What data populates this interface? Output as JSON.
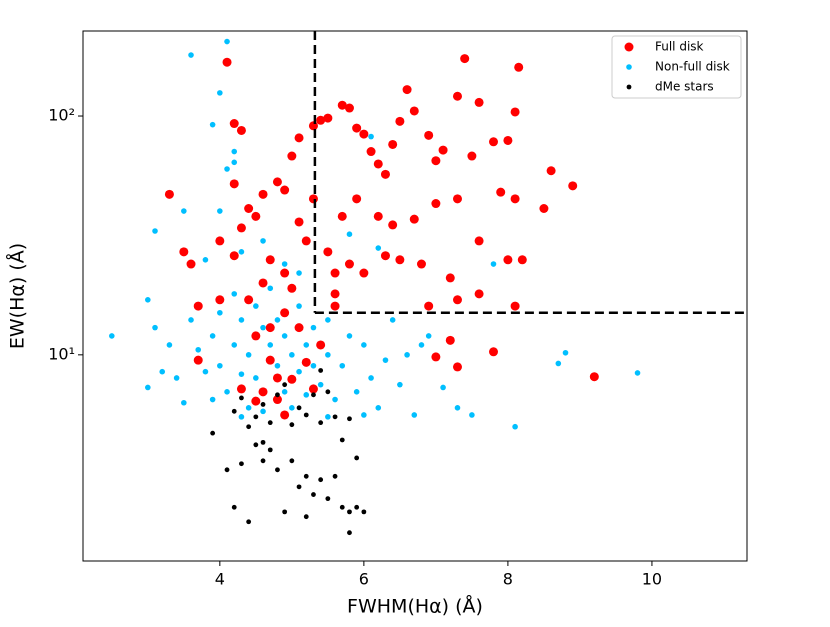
{
  "chart_data": {
    "type": "scatter",
    "xlabel": "FWHM(Hα) (Å)",
    "ylabel": "EW(Hα) (Å)",
    "xlim": [
      2.1,
      11.32
    ],
    "ylim": [
      1.37,
      227
    ],
    "ylog": true,
    "xticks": [
      4,
      6,
      8,
      10
    ],
    "yticks": [
      {
        "value": 10,
        "label": "10¹"
      },
      {
        "value": 100,
        "label": "10²"
      }
    ],
    "cuts": {
      "x": 5.32,
      "y": 15
    },
    "legend": "upper right",
    "series": [
      {
        "name": "Full disk",
        "color": "#ff0000",
        "marker_size": 4.5,
        "x": [
          4.1,
          3.3,
          3.5,
          3.6,
          4.0,
          4.2,
          4.3,
          4.2,
          4.4,
          4.5,
          4.6,
          4.8,
          4.9,
          5.0,
          5.1,
          5.3,
          5.4,
          5.5,
          5.7,
          5.8,
          5.9,
          6.0,
          6.1,
          6.2,
          6.3,
          6.4,
          6.5,
          6.6,
          6.7,
          6.9,
          7.0,
          7.1,
          7.3,
          7.4,
          7.5,
          7.6,
          7.8,
          8.0,
          8.1,
          8.15,
          7.9,
          8.1,
          8.5,
          8.6,
          8.9,
          9.2,
          7.8,
          7.3,
          7.2,
          7.0,
          6.9,
          7.3,
          7.6,
          8.1,
          8.2,
          8.0,
          7.6,
          7.2,
          6.8,
          6.5,
          6.3,
          6.0,
          5.8,
          5.6,
          5.5,
          5.7,
          5.9,
          6.2,
          6.4,
          6.7,
          7.0,
          7.3,
          5.3,
          5.2,
          5.1,
          4.9,
          4.7,
          4.6,
          4.4,
          4.5,
          4.7,
          4.8,
          4.6,
          4.3,
          4.5,
          4.9,
          5.3,
          5.1,
          5.4,
          3.7,
          3.7,
          4.0,
          5.6,
          5.6,
          4.2,
          4.3,
          5.0,
          4.9,
          4.7,
          5.2,
          4.8,
          5.0
        ],
        "values": [
          168,
          47,
          27,
          24,
          30,
          93,
          87,
          52,
          41,
          38,
          47,
          53,
          49,
          68,
          81,
          91,
          96,
          98,
          111,
          108,
          89,
          84,
          71,
          63,
          57,
          76,
          95,
          129,
          105,
          83,
          65,
          72,
          121,
          174,
          68,
          114,
          78,
          79,
          104,
          160,
          48,
          45,
          41,
          59,
          51,
          8.1,
          10.3,
          8.9,
          11.5,
          9.8,
          16,
          17,
          18,
          16,
          25,
          25,
          30,
          21,
          24,
          25,
          26,
          22,
          24,
          22,
          27,
          38,
          45,
          38,
          35,
          37,
          43,
          45,
          45,
          30,
          36,
          22,
          25,
          20,
          17,
          12,
          9.5,
          8,
          7,
          7.2,
          6.4,
          5.6,
          7.2,
          13,
          11,
          9.5,
          16,
          17,
          16,
          18,
          26,
          34,
          19,
          15,
          13,
          9.3,
          6.5,
          7.9
        ]
      },
      {
        "name": "Non-full disk",
        "color": "#00bfff",
        "marker_size": 2.8,
        "x": [
          2.5,
          3.0,
          3.1,
          3.6,
          4.1,
          4.0,
          4.2,
          4.1,
          3.9,
          4.2,
          8.8,
          9.8,
          8.7,
          8.1,
          7.5,
          7.3,
          3.0,
          3.1,
          3.3,
          3.4,
          3.5,
          3.6,
          3.7,
          3.8,
          3.9,
          4.0,
          4.0,
          4.1,
          4.2,
          4.2,
          4.3,
          4.3,
          4.4,
          4.4,
          4.5,
          4.5,
          4.6,
          4.6,
          4.7,
          4.7,
          4.8,
          4.8,
          4.9,
          4.9,
          5.0,
          5.0,
          5.1,
          5.1,
          5.2,
          5.2,
          5.3,
          5.3,
          5.4,
          5.5,
          5.5,
          5.6,
          5.7,
          5.8,
          5.9,
          6.0,
          6.1,
          6.2,
          6.3,
          6.4,
          6.5,
          6.6,
          6.8,
          7.1,
          6.7,
          3.5,
          3.8,
          4.0,
          4.3,
          4.6,
          4.9,
          5.1,
          5.8,
          6.2,
          7.8,
          6.9,
          5.5,
          4.3,
          3.2,
          6.0,
          3.9,
          6.1
        ],
        "values": [
          12,
          7.3,
          33,
          180,
          205,
          125,
          64,
          60,
          92,
          71,
          10.2,
          8.4,
          9.2,
          5.0,
          5.6,
          6.0,
          17,
          13,
          11,
          8,
          6.3,
          14,
          10.5,
          8.5,
          12,
          15,
          9,
          7,
          11,
          18,
          14,
          8.3,
          10,
          6,
          16,
          8,
          13,
          5.8,
          11,
          19,
          9,
          14,
          7,
          12,
          10,
          6,
          8.5,
          16,
          11,
          6.8,
          13,
          9,
          7.5,
          10,
          14,
          6.5,
          9,
          12,
          7,
          11,
          8,
          6,
          9.5,
          14,
          7.5,
          10,
          11,
          7.3,
          5.6,
          40,
          25,
          40,
          27,
          30,
          24,
          22,
          32,
          28,
          24,
          12,
          5.5,
          5.5,
          8.5,
          5.6,
          6.5,
          82
        ]
      },
      {
        "name": "dMe stars",
        "color": "#000000",
        "marker_size": 2.4,
        "x": [
          3.9,
          4.1,
          4.2,
          4.4,
          4.3,
          4.5,
          4.6,
          4.6,
          4.8,
          4.9,
          5.0,
          5.1,
          5.2,
          5.3,
          5.4,
          5.5,
          5.6,
          5.7,
          5.8,
          5.8,
          5.9,
          6.0,
          5.9,
          5.2,
          4.4,
          4.5,
          4.6,
          4.7,
          4.8,
          4.9,
          5.1,
          5.2,
          5.3,
          5.4,
          5.5,
          5.6,
          5.7,
          5.8,
          4.2,
          4.3,
          5.4,
          4.7,
          5.0
        ],
        "values": [
          4.7,
          3.3,
          2.3,
          2.0,
          3.5,
          4.2,
          3.6,
          4.3,
          3.3,
          2.2,
          3.6,
          2.8,
          3.1,
          2.6,
          3.0,
          2.5,
          3.1,
          2.3,
          2.2,
          1.8,
          2.3,
          2.2,
          3.7,
          2.1,
          5.0,
          5.5,
          6.2,
          5.2,
          6.8,
          7.5,
          6.0,
          5.6,
          6.8,
          5.2,
          7.0,
          5.5,
          4.4,
          5.4,
          5.8,
          6.6,
          8.6,
          4.0,
          5.1
        ]
      }
    ]
  }
}
